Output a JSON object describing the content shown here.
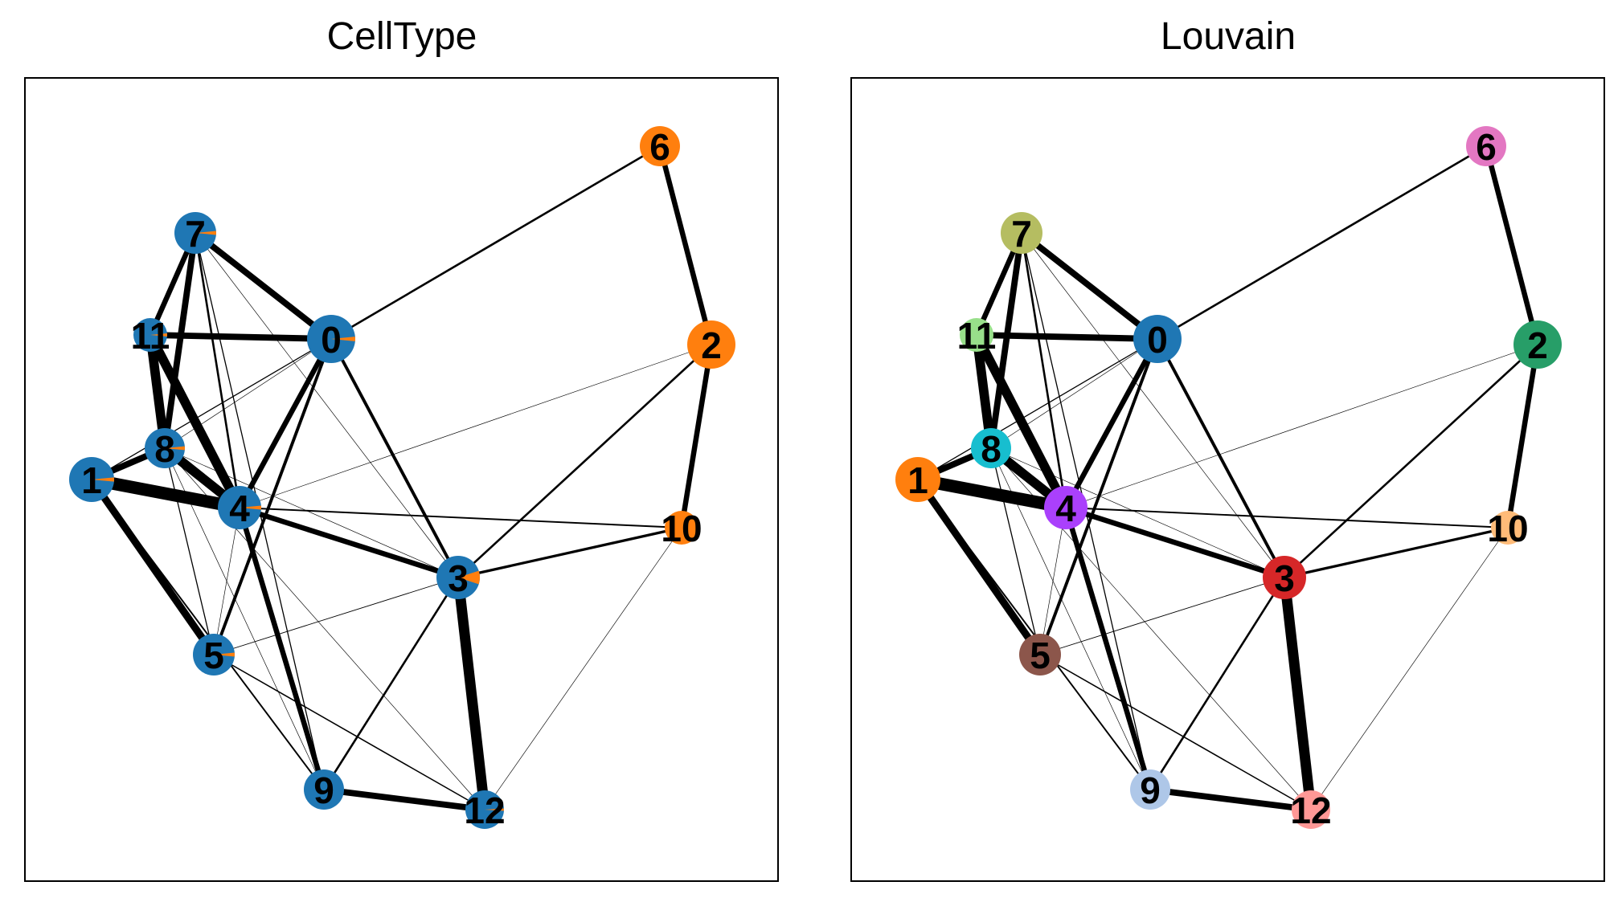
{
  "panels": [
    {
      "title": "CellType",
      "node_colors": {
        "0": "#1f77b4",
        "1": "#1f77b4",
        "2": "#ff7f0e",
        "3": "#1f77b4",
        "4": "#1f77b4",
        "5": "#1f77b4",
        "6": "#ff7f0e",
        "7": "#1f77b4",
        "8": "#1f77b4",
        "9": "#1f77b4",
        "10": "#ff7f0e",
        "11": "#1f77b4",
        "12": "#1f77b4"
      },
      "minor_slice_color": "#ff7f0e",
      "minor_slices": {
        "0": 0.03,
        "1": 0.03,
        "3": 0.1,
        "4": 0.03,
        "5": 0.03,
        "7": 0.03,
        "8": 0.03,
        "11": 0.03,
        "12": 0.02
      }
    },
    {
      "title": "Louvain",
      "node_colors": {
        "0": "#1f77b4",
        "1": "#ff7f0e",
        "2": "#279e68",
        "3": "#d62728",
        "4": "#aa40fc",
        "5": "#8c564b",
        "6": "#e377c2",
        "7": "#b5bd61",
        "8": "#17becf",
        "9": "#aec7e8",
        "10": "#ffbb78",
        "11": "#98df8a",
        "12": "#ff9896"
      }
    }
  ],
  "nodes": [
    {
      "id": "0",
      "label": "0"
    },
    {
      "id": "1",
      "label": "1"
    },
    {
      "id": "2",
      "label": "2"
    },
    {
      "id": "3",
      "label": "3"
    },
    {
      "id": "4",
      "label": "4"
    },
    {
      "id": "5",
      "label": "5"
    },
    {
      "id": "6",
      "label": "6"
    },
    {
      "id": "7",
      "label": "7"
    },
    {
      "id": "8",
      "label": "8"
    },
    {
      "id": "9",
      "label": "9"
    },
    {
      "id": "10",
      "label": "10"
    },
    {
      "id": "11",
      "label": "11"
    },
    {
      "id": "12",
      "label": "12"
    }
  ],
  "edges": [
    {
      "source": "0",
      "target": "6",
      "weight": 2
    },
    {
      "source": "6",
      "target": "2",
      "weight": 5
    },
    {
      "source": "2",
      "target": "10",
      "weight": 5
    },
    {
      "source": "2",
      "target": "3",
      "weight": 2
    },
    {
      "source": "2",
      "target": "4",
      "weight": 0.5
    },
    {
      "source": "7",
      "target": "0",
      "weight": 6
    },
    {
      "source": "7",
      "target": "11",
      "weight": 5
    },
    {
      "source": "7",
      "target": "8",
      "weight": 6
    },
    {
      "source": "7",
      "target": "4",
      "weight": 2
    },
    {
      "source": "7",
      "target": "9",
      "weight": 1
    },
    {
      "source": "7",
      "target": "3",
      "weight": 0.5
    },
    {
      "source": "11",
      "target": "0",
      "weight": 6
    },
    {
      "source": "11",
      "target": "8",
      "weight": 9
    },
    {
      "source": "11",
      "target": "4",
      "weight": 9
    },
    {
      "source": "0",
      "target": "4",
      "weight": 5
    },
    {
      "source": "0",
      "target": "5",
      "weight": 3
    },
    {
      "source": "0",
      "target": "3",
      "weight": 3
    },
    {
      "source": "0",
      "target": "8",
      "weight": 0.5
    },
    {
      "source": "0",
      "target": "1",
      "weight": 1
    },
    {
      "source": "8",
      "target": "4",
      "weight": 9
    },
    {
      "source": "8",
      "target": "1",
      "weight": 6
    },
    {
      "source": "8",
      "target": "5",
      "weight": 1
    },
    {
      "source": "8",
      "target": "9",
      "weight": 0.5
    },
    {
      "source": "8",
      "target": "12",
      "weight": 0.5
    },
    {
      "source": "8",
      "target": "3",
      "weight": 0.5
    },
    {
      "source": "4",
      "target": "1",
      "weight": 12
    },
    {
      "source": "4",
      "target": "3",
      "weight": 5
    },
    {
      "source": "4",
      "target": "9",
      "weight": 5
    },
    {
      "source": "4",
      "target": "5",
      "weight": 0.5
    },
    {
      "source": "4",
      "target": "10",
      "weight": 1.5
    },
    {
      "source": "1",
      "target": "5",
      "weight": 7
    },
    {
      "source": "1",
      "target": "9",
      "weight": 1.5
    },
    {
      "source": "5",
      "target": "3",
      "weight": 0.7
    },
    {
      "source": "5",
      "target": "12",
      "weight": 1.2
    },
    {
      "source": "3",
      "target": "10",
      "weight": 2.5
    },
    {
      "source": "3",
      "target": "9",
      "weight": 2
    },
    {
      "source": "3",
      "target": "12",
      "weight": 10
    },
    {
      "source": "9",
      "target": "12",
      "weight": 6
    },
    {
      "source": "12",
      "target": "10",
      "weight": 0.5
    }
  ]
}
